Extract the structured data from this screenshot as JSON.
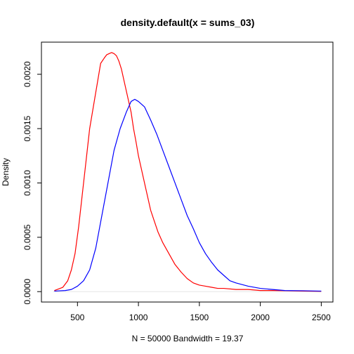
{
  "chart_data": {
    "type": "line",
    "title": "density.default(x = sums_03)",
    "xlabel": "N = 50000   Bandwidth = 19.37",
    "ylabel": "Density",
    "xlim": [
      300,
      2500
    ],
    "ylim": [
      0,
      0.0022
    ],
    "x_ticks": [
      500,
      1000,
      1500,
      2000,
      2500
    ],
    "x_tick_labels": [
      "500",
      "1000",
      "1500",
      "2000",
      "2500"
    ],
    "y_ticks": [
      0,
      0.0005,
      0.001,
      0.0015,
      0.002
    ],
    "y_tick_labels": [
      "0.0000",
      "0.0005",
      "0.0010",
      "0.0015",
      "0.0020"
    ],
    "grid": false,
    "legend": "none",
    "series": [
      {
        "color": "#ff0000",
        "x": [
          310,
          380,
          420,
          450,
          480,
          510,
          540,
          570,
          600,
          630,
          660,
          690,
          720,
          740,
          760,
          780,
          800,
          820,
          840,
          860,
          880,
          900,
          920,
          940,
          960,
          980,
          1000,
          1020,
          1040,
          1060,
          1080,
          1100,
          1130,
          1160,
          1200,
          1250,
          1300,
          1350,
          1400,
          1450,
          1500,
          1550,
          1600,
          1650,
          1700,
          1800,
          1900,
          2000,
          2100,
          2200,
          2350,
          2500
        ],
        "y": [
          1e-05,
          4e-05,
          0.0001,
          0.0002,
          0.00035,
          0.0006,
          0.0009,
          0.0012,
          0.0015,
          0.0017,
          0.0019,
          0.0021,
          0.00215,
          0.00218,
          0.00219,
          0.0022,
          0.00219,
          0.00217,
          0.00212,
          0.00205,
          0.00195,
          0.00185,
          0.00175,
          0.00165,
          0.0015,
          0.00138,
          0.00125,
          0.00115,
          0.00105,
          0.00095,
          0.00085,
          0.00075,
          0.00065,
          0.00055,
          0.00045,
          0.00035,
          0.00025,
          0.00018,
          0.00012,
          8e-05,
          6e-05,
          5e-05,
          4e-05,
          3e-05,
          3e-05,
          2e-05,
          2e-05,
          1e-05,
          1e-05,
          8e-06,
          5e-06,
          3e-06
        ]
      },
      {
        "color": "#0000ff",
        "x": [
          310,
          400,
          450,
          500,
          550,
          600,
          650,
          700,
          750,
          800,
          850,
          900,
          940,
          970,
          1000,
          1050,
          1100,
          1150,
          1200,
          1250,
          1300,
          1350,
          1400,
          1450,
          1500,
          1550,
          1600,
          1650,
          1700,
          1750,
          1800,
          1900,
          2000,
          2100,
          2200,
          2350,
          2500
        ],
        "y": [
          5e-06,
          1e-05,
          2e-05,
          5e-05,
          0.0001,
          0.0002,
          0.0004,
          0.0007,
          0.001,
          0.0013,
          0.0015,
          0.00165,
          0.00175,
          0.00177,
          0.00175,
          0.0017,
          0.00158,
          0.00145,
          0.0013,
          0.00115,
          0.001,
          0.00085,
          0.0007,
          0.00058,
          0.00045,
          0.00035,
          0.00027,
          0.0002,
          0.00015,
          0.0001,
          8e-05,
          5e-05,
          3e-05,
          2e-05,
          1e-05,
          8e-06,
          5e-06
        ]
      }
    ]
  }
}
